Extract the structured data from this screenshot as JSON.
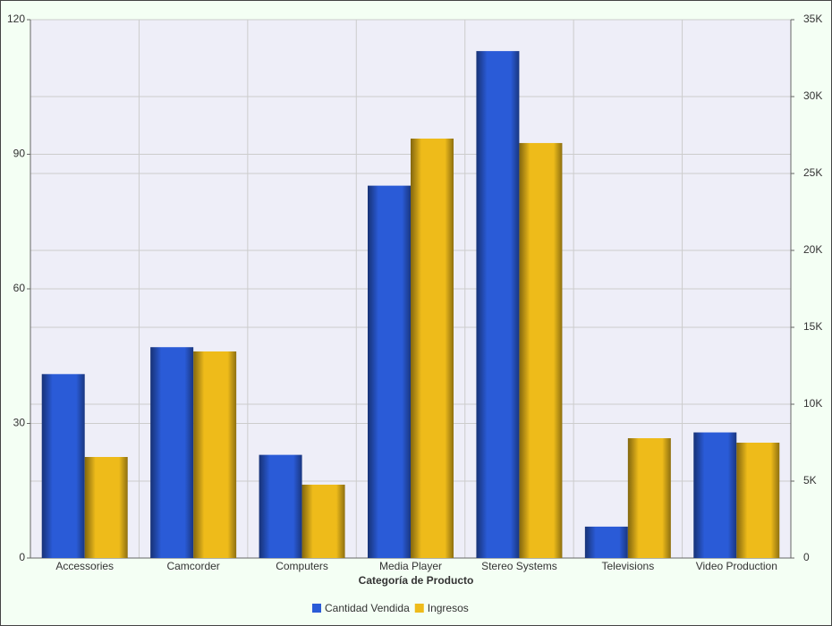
{
  "chart_data": {
    "type": "bar",
    "x_label": "Categoría de Producto",
    "categories": [
      "Accessories",
      "Camcorder",
      "Computers",
      "Media Player",
      "Stereo Systems",
      "Televisions",
      "Video Production"
    ],
    "series": [
      {
        "name": "Cantidad Vendida",
        "color": "#2a5bd7",
        "values": [
          41,
          47,
          23,
          83,
          113,
          7,
          28
        ]
      },
      {
        "name": "Ingresos",
        "color": "#eebb1a",
        "axis": "y2",
        "values": [
          6570,
          13430,
          4770,
          27270,
          26980,
          7790,
          7500
        ]
      }
    ],
    "ylim": [
      0,
      120
    ],
    "yticks": [
      0,
      30,
      60,
      90,
      120
    ],
    "y2lim": [
      0,
      35000
    ],
    "y2ticks": [
      {
        "value": 0,
        "label": "0"
      },
      {
        "value": 5000,
        "label": "5K"
      },
      {
        "value": 10000,
        "label": "10K"
      },
      {
        "value": 15000,
        "label": "15K"
      },
      {
        "value": 20000,
        "label": "20K"
      },
      {
        "value": 25000,
        "label": "25K"
      },
      {
        "value": 30000,
        "label": "30K"
      },
      {
        "value": 35000,
        "label": "35K"
      }
    ],
    "grid": true,
    "legend": "bottom"
  }
}
